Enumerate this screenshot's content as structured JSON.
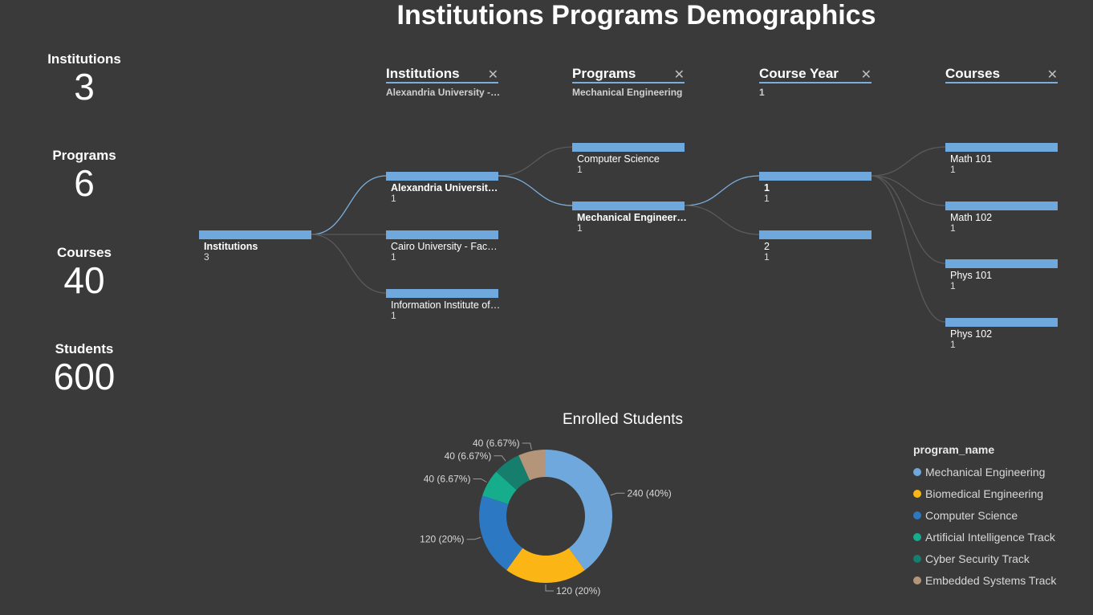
{
  "title": "Institutions Programs Demographics",
  "kpis": [
    {
      "label": "Institutions",
      "value": "3"
    },
    {
      "label": "Programs",
      "value": "6"
    },
    {
      "label": "Courses",
      "value": "40"
    },
    {
      "label": "Students",
      "value": "600"
    }
  ],
  "tree": {
    "columns": [
      {
        "label": "Institutions",
        "filter": "Alexandria University - Faculty of Engineering",
        "close": "✕"
      },
      {
        "label": "Programs",
        "filter": "Mechanical Engineering",
        "close": "✕"
      },
      {
        "label": "Course Year",
        "filter": "1",
        "close": "✕"
      },
      {
        "label": "Courses",
        "filter": "",
        "close": "✕"
      }
    ],
    "root": {
      "label": "Institutions",
      "count": "3"
    },
    "institutions": [
      {
        "label": "Alexandria University - Faculty of Engineering",
        "count": "1"
      },
      {
        "label": "Cairo University - Faculty of Engineering",
        "count": "1"
      },
      {
        "label": "Information Institute of Technology",
        "count": "1"
      }
    ],
    "programs": [
      {
        "label": "Computer Science",
        "count": "1"
      },
      {
        "label": "Mechanical Engineering",
        "count": "1"
      }
    ],
    "years": [
      {
        "label": "1",
        "count": "1"
      },
      {
        "label": "2",
        "count": "1"
      }
    ],
    "courses": [
      {
        "label": "Math 101",
        "count": "1"
      },
      {
        "label": "Math 102",
        "count": "1"
      },
      {
        "label": "Phys 101",
        "count": "1"
      },
      {
        "label": "Phys 102",
        "count": "1"
      }
    ]
  },
  "chart_data": {
    "type": "pie",
    "title": "Enrolled Students",
    "legend_title": "program_name",
    "legend_position": "right",
    "donut": true,
    "slices": [
      {
        "name": "Mechanical Engineering",
        "value": 240,
        "label": "240 (40%)",
        "color": "#6fa8dc"
      },
      {
        "name": "Biomedical Engineering",
        "value": 120,
        "label": "120 (20%)",
        "color": "#fbb616"
      },
      {
        "name": "Computer Science",
        "value": 120,
        "label": "120 (20%)",
        "color": "#2c78c2"
      },
      {
        "name": "Artificial Intelligence Track",
        "value": 40,
        "label": "40 (6.67%)",
        "color": "#16ad8d"
      },
      {
        "name": "Cyber Security Track",
        "value": 40,
        "label": "40 (6.67%)",
        "color": "#157e6c"
      },
      {
        "name": "Embedded Systems Track",
        "value": 40,
        "label": "40 (6.67%)",
        "color": "#b4957a"
      }
    ]
  }
}
